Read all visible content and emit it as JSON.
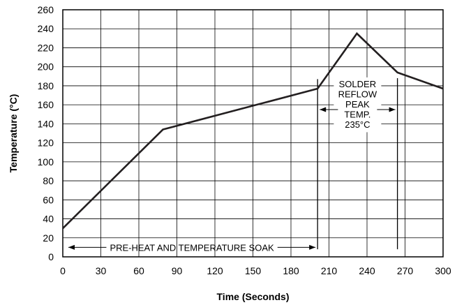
{
  "chart_data": {
    "type": "line",
    "xlabel": "Time (Seconds)",
    "ylabel": "Temperature (°C)",
    "xlim": [
      0,
      300
    ],
    "ylim": [
      0,
      260
    ],
    "xticks": [
      0,
      30,
      60,
      90,
      120,
      150,
      180,
      210,
      240,
      270,
      300
    ],
    "yticks": [
      0,
      20,
      40,
      60,
      80,
      100,
      120,
      140,
      160,
      180,
      200,
      220,
      240,
      260
    ],
    "grid": true,
    "series": [
      {
        "x": [
          0,
          79,
          201,
          232,
          264,
          300
        ],
        "y": [
          30,
          134,
          177,
          235,
          194,
          177
        ]
      }
    ],
    "annotations": {
      "preheat": {
        "label": "PRE-HEAT AND TEMPERATURE SOAK",
        "x_start": 0,
        "x_end": 201,
        "y": 10
      },
      "reflow": {
        "lines": [
          "SOLDER",
          "REFLOW",
          "PEAK",
          "TEMP.",
          "235°C"
        ],
        "x_start": 201,
        "x_end": 264,
        "arrow_y": 155
      }
    }
  }
}
